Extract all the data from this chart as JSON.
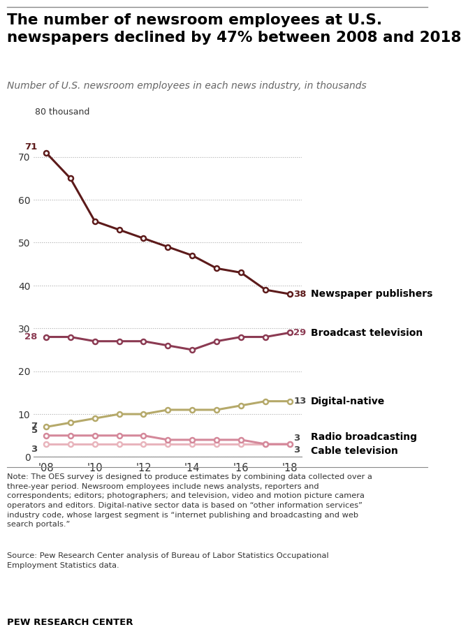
{
  "title": "The number of newsroom employees at U.S.\nnewspapers declined by 47% between 2008 and 2018",
  "subtitle": "Number of U.S. newsroom employees in each news industry, in thousands",
  "years": [
    2008,
    2009,
    2010,
    2011,
    2012,
    2013,
    2014,
    2015,
    2016,
    2017,
    2018
  ],
  "newspaper": [
    71,
    65,
    55,
    53,
    51,
    49,
    47,
    44,
    43,
    39,
    38
  ],
  "broadcast": [
    28,
    28,
    27,
    27,
    27,
    26,
    25,
    27,
    28,
    28,
    29
  ],
  "digital": [
    7,
    8,
    9,
    10,
    10,
    11,
    11,
    11,
    12,
    13,
    13
  ],
  "radio": [
    5,
    5,
    5,
    5,
    5,
    4,
    4,
    4,
    4,
    3,
    3
  ],
  "cable": [
    3,
    3,
    3,
    3,
    3,
    3,
    3,
    3,
    3,
    3,
    3
  ],
  "newspaper_color": "#5c1a1a",
  "broadcast_color": "#8b3a52",
  "digital_color": "#b5a96a",
  "radio_color": "#d4889a",
  "cable_color": "#e8b4bc",
  "yticks": [
    0,
    10,
    20,
    30,
    40,
    50,
    60,
    70
  ],
  "note_text": "Note: The OES survey is designed to produce estimates by combining data collected over a\nthree-year period. Newsroom employees include news analysts, reporters and\ncorrespondents; editors; photographers; and television, video and motion picture camera\noperators and editors. Digital-native sector data is based on “other information services”\nindustry code, whose largest segment is “internet publishing and broadcasting and web\nsearch portals.”",
  "source_text": "Source: Pew Research Center analysis of Bureau of Labor Statistics Occupational\nEmployment Statistics data.",
  "credit_text": "PEW RESEARCH CENTER",
  "background_color": "#ffffff",
  "label_newspaper": "Newspaper publishers",
  "label_broadcast": "Broadcast television",
  "label_digital": "Digital-native",
  "label_radio": "Radio broadcasting",
  "label_cable": "Cable television"
}
